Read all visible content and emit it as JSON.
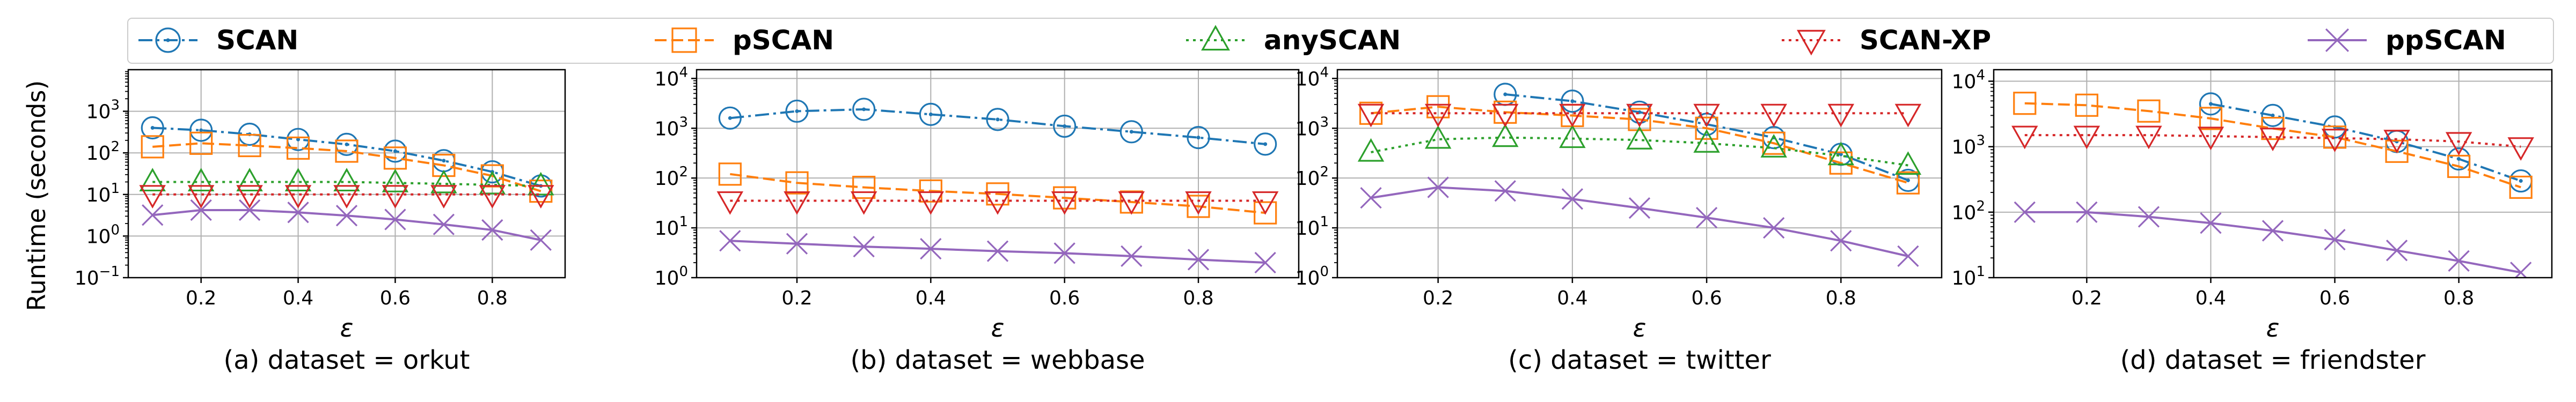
{
  "figure": {
    "ylabel": "Runtime (seconds)",
    "legend": [
      {
        "name": "SCAN",
        "color": "#1f77b4",
        "marker": "circle-dot",
        "dash": "dashdot"
      },
      {
        "name": "pSCAN",
        "color": "#ff7f0e",
        "marker": "square",
        "dash": "dashed"
      },
      {
        "name": "anySCAN",
        "color": "#2ca02c",
        "marker": "triangle-up",
        "dash": "dotted"
      },
      {
        "name": "SCAN-XP",
        "color": "#d62728",
        "marker": "triangle-down",
        "dash": "dotted"
      },
      {
        "name": "ppSCAN",
        "color": "#9467bd",
        "marker": "x",
        "dash": "solid"
      }
    ]
  },
  "chart_data": [
    {
      "type": "line",
      "caption": "(a) dataset = orkut",
      "xlabel": "ε",
      "ylabel": "Runtime (seconds)",
      "yscale": "log",
      "ylim": [
        0.1,
        10000
      ],
      "xlim": [
        0.05,
        0.95
      ],
      "xticks": [
        0.2,
        0.4,
        0.6,
        0.8
      ],
      "xtick_labels": [
        "0.2",
        "0.4",
        "0.6",
        "0.8"
      ],
      "yticks": [
        0.1,
        1,
        10,
        100,
        1000
      ],
      "ytick_labels": [
        "10^-1",
        "10^0",
        "10^1",
        "10^2",
        "10^3"
      ],
      "grid": true,
      "x": [
        0.1,
        0.2,
        0.3,
        0.4,
        0.5,
        0.6,
        0.7,
        0.8,
        0.9
      ],
      "series": [
        {
          "name": "SCAN",
          "values": [
            400,
            350,
            280,
            210,
            160,
            110,
            65,
            35,
            16
          ]
        },
        {
          "name": "pSCAN",
          "values": [
            140,
            170,
            150,
            130,
            110,
            75,
            50,
            28,
            12
          ]
        },
        {
          "name": "anySCAN",
          "values": [
            20,
            20,
            20,
            20,
            20,
            19,
            18,
            17,
            16
          ]
        },
        {
          "name": "SCAN-XP",
          "values": [
            10,
            10,
            10,
            10,
            10,
            10,
            10,
            10,
            10
          ]
        },
        {
          "name": "ppSCAN",
          "values": [
            3.2,
            4.2,
            4.2,
            3.7,
            3.1,
            2.5,
            1.9,
            1.4,
            0.8
          ]
        }
      ]
    },
    {
      "type": "line",
      "caption": "(b) dataset = webbase",
      "xlabel": "ε",
      "ylabel": "",
      "yscale": "log",
      "ylim": [
        1,
        15000
      ],
      "xlim": [
        0.05,
        0.95
      ],
      "xticks": [
        0.2,
        0.4,
        0.6,
        0.8
      ],
      "xtick_labels": [
        "0.2",
        "0.4",
        "0.6",
        "0.8"
      ],
      "yticks": [
        1,
        10,
        100,
        1000,
        10000
      ],
      "ytick_labels": [
        "10^0",
        "10^1",
        "10^2",
        "10^3",
        "10^4"
      ],
      "grid": true,
      "x": [
        0.1,
        0.2,
        0.3,
        0.4,
        0.5,
        0.6,
        0.7,
        0.8,
        0.9
      ],
      "series": [
        {
          "name": "SCAN",
          "values": [
            1600,
            2200,
            2400,
            1900,
            1500,
            1100,
            850,
            650,
            480
          ]
        },
        {
          "name": "pSCAN",
          "values": [
            120,
            80,
            65,
            55,
            48,
            40,
            33,
            27,
            20
          ]
        },
        {
          "name": "SCAN-XP",
          "values": [
            35,
            35,
            35,
            35,
            35,
            35,
            35,
            35,
            35
          ]
        },
        {
          "name": "ppSCAN",
          "values": [
            5.5,
            4.8,
            4.2,
            3.8,
            3.4,
            3.1,
            2.7,
            2.3,
            2.0
          ]
        }
      ]
    },
    {
      "type": "line",
      "caption": "(c) dataset = twitter",
      "xlabel": "ε",
      "ylabel": "",
      "yscale": "log",
      "ylim": [
        1,
        15000
      ],
      "xlim": [
        0.05,
        0.95
      ],
      "xticks": [
        0.2,
        0.4,
        0.6,
        0.8
      ],
      "xtick_labels": [
        "0.2",
        "0.4",
        "0.6",
        "0.8"
      ],
      "yticks": [
        1,
        10,
        100,
        1000,
        10000
      ],
      "ytick_labels": [
        "10^0",
        "10^1",
        "10^2",
        "10^3",
        "10^4"
      ],
      "grid": true,
      "x": [
        0.1,
        0.2,
        0.3,
        0.4,
        0.5,
        0.6,
        0.7,
        0.8,
        0.9
      ],
      "series": [
        {
          "name": "SCAN",
          "x": [
            0.3,
            0.4,
            0.5,
            0.6,
            0.7,
            0.8,
            0.9
          ],
          "values": [
            4800,
            3500,
            2100,
            1200,
            650,
            300,
            90
          ]
        },
        {
          "name": "pSCAN",
          "values": [
            2000,
            2700,
            2100,
            1800,
            1500,
            1000,
            500,
            200,
            80
          ]
        },
        {
          "name": "anySCAN",
          "values": [
            330,
            600,
            650,
            620,
            580,
            500,
            400,
            280,
            180
          ]
        },
        {
          "name": "SCAN-XP",
          "values": [
            2000,
            2000,
            2000,
            2000,
            2000,
            2000,
            2000,
            2000,
            2000
          ]
        },
        {
          "name": "ppSCAN",
          "values": [
            40,
            65,
            55,
            38,
            25,
            16,
            10,
            5.5,
            2.7
          ]
        }
      ]
    },
    {
      "type": "line",
      "caption": "(d) dataset = friendster",
      "xlabel": "ε",
      "ylabel": "",
      "yscale": "log",
      "ylim": [
        10,
        15000
      ],
      "xlim": [
        0.05,
        0.95
      ],
      "xticks": [
        0.2,
        0.4,
        0.6,
        0.8
      ],
      "xtick_labels": [
        "0.2",
        "0.4",
        "0.6",
        "0.8"
      ],
      "yticks": [
        10,
        100,
        1000,
        10000
      ],
      "ytick_labels": [
        "10^1",
        "10^2",
        "10^3",
        "10^4"
      ],
      "grid": true,
      "x": [
        0.1,
        0.2,
        0.3,
        0.4,
        0.5,
        0.6,
        0.7,
        0.8,
        0.9
      ],
      "series": [
        {
          "name": "SCAN",
          "x": [
            0.4,
            0.5,
            0.6,
            0.7,
            0.8,
            0.9
          ],
          "values": [
            4500,
            3000,
            2000,
            1200,
            650,
            300
          ]
        },
        {
          "name": "pSCAN",
          "values": [
            4600,
            4300,
            3500,
            2700,
            1900,
            1400,
            850,
            500,
            240
          ]
        },
        {
          "name": "SCAN-XP",
          "values": [
            1500,
            1500,
            1500,
            1450,
            1400,
            1350,
            1300,
            1200,
            1000
          ]
        },
        {
          "name": "ppSCAN",
          "values": [
            100,
            100,
            85,
            68,
            52,
            38,
            26,
            18,
            12
          ]
        }
      ]
    }
  ]
}
